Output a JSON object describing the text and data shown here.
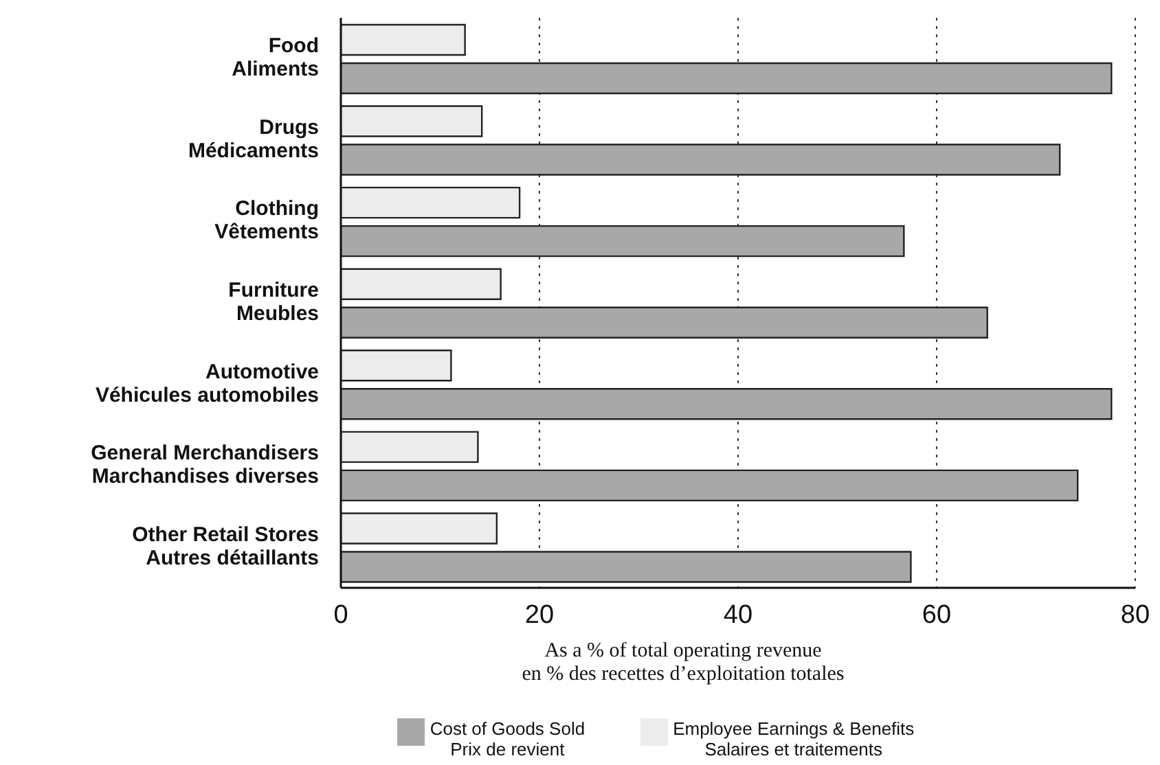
{
  "chart_data": {
    "type": "bar",
    "orientation": "horizontal",
    "categories": [
      "Food\nAliments",
      "Drugs\nMédicaments",
      "Clothing\nVêtements",
      "Furniture\nMeubles",
      "Automotive\nVéhicules automobiles",
      "General Merchandisers\nMarchandises diverses",
      "Other Retail Stores\nAutres détaillants"
    ],
    "series": [
      {
        "name": "Employee Earnings & Benefits\nSalaires et traitements",
        "color": "#ececec",
        "values": [
          12.5,
          14.2,
          18.0,
          16.1,
          11.1,
          13.8,
          15.7
        ]
      },
      {
        "name": "Cost of Goods Sold\nPrix de revient",
        "color": "#a8a8a8",
        "values": [
          77.6,
          72.4,
          56.7,
          65.1,
          77.6,
          74.2,
          57.4
        ]
      }
    ],
    "xlabel": "As a % of total operating revenue\nen % des recettes d’exploitation totales",
    "xlim": [
      0,
      80
    ],
    "xticks": [
      0,
      20,
      40,
      60,
      80
    ],
    "grid": "x",
    "legend": "bottom"
  }
}
